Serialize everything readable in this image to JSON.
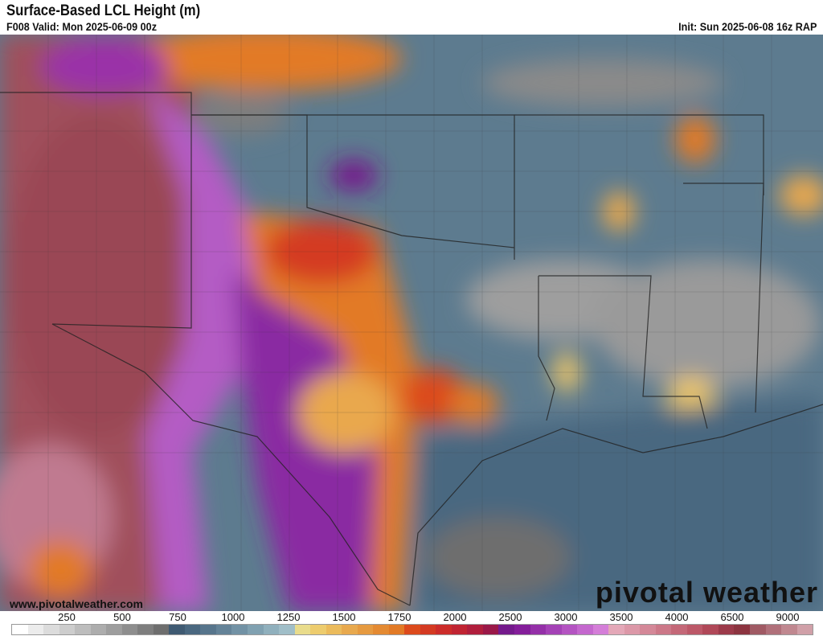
{
  "header": {
    "title": "Surface-Based LCL Height (m)",
    "valid": "F008 Valid: Mon 2025-06-09 00z",
    "init": "Init: Sun 2025-06-08 16z RAP"
  },
  "watermark": {
    "site": "www.pivotalweather.com",
    "logo": "pivotal weather"
  },
  "colorbar": {
    "ticks": [
      "250",
      "500",
      "750",
      "1000",
      "1250",
      "1500",
      "1750",
      "2000",
      "2500",
      "3000",
      "3500",
      "4000",
      "6500",
      "9000"
    ],
    "colors": [
      "#ffffff",
      "#ececec",
      "#dcdcdc",
      "#cdcdcd",
      "#bdbdbd",
      "#adadad",
      "#9e9e9e",
      "#8e8e8e",
      "#7e7e7e",
      "#6e6e6e",
      "#3f5a72",
      "#4a6880",
      "#57758c",
      "#648398",
      "#7292a5",
      "#80a1b1",
      "#90b0bd",
      "#a0bec8",
      "#e9dc8c",
      "#edcc6e",
      "#ebbb5c",
      "#e8a94e",
      "#e69a40",
      "#e48a32",
      "#e27a26",
      "#dc4a1c",
      "#d43a22",
      "#cc2c2a",
      "#c02432",
      "#b01e3c",
      "#9a1848",
      "#741a8c",
      "#841e9a",
      "#9430a8",
      "#a442b6",
      "#b454c2",
      "#c468ce",
      "#d47ed8",
      "#e4a8b8",
      "#dc98a8",
      "#d48898",
      "#cc7888",
      "#c46878",
      "#bc5868",
      "#b04858",
      "#9c3a4a",
      "#8c3440",
      "#a05a64",
      "#b0707a",
      "#c08890",
      "#d0a0a8"
    ]
  },
  "map": {
    "colors": {
      "desert": "#a0505c",
      "purple": "#9a3cb4",
      "orange": "#e48a32",
      "red": "#d43a22",
      "blue": "#57758c",
      "gray": "#9e9e9e",
      "gulf": "#4a6880",
      "yellow": "#e9c46a"
    }
  }
}
